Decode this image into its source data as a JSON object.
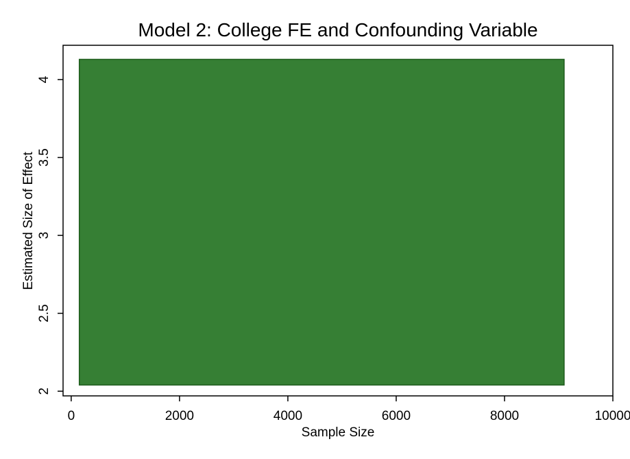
{
  "chart_data": {
    "type": "area",
    "title": "Model 2: College FE and Confounding Variable",
    "xlabel": "Sample Size",
    "ylabel": "Estimated Size of Effect",
    "xlim": [
      -150,
      10000
    ],
    "ylim": [
      1.97,
      4.22
    ],
    "xticks": [
      0,
      2000,
      4000,
      6000,
      8000,
      10000
    ],
    "xtick_labels": [
      "0",
      "2000",
      "4000",
      "6000",
      "8000",
      "10000"
    ],
    "yticks": [
      2,
      2.5,
      3,
      3.5,
      4
    ],
    "ytick_labels": [
      "2",
      "2.5",
      "3",
      "3.5",
      "4"
    ],
    "grid": false,
    "legend": "none",
    "series": [
      {
        "color": "#367f34",
        "edge_color": "#1d5b1b",
        "x": [
          150,
          9100
        ],
        "y_low": [
          2.04,
          2.04
        ],
        "y_high": [
          4.13,
          4.13
        ]
      }
    ]
  }
}
